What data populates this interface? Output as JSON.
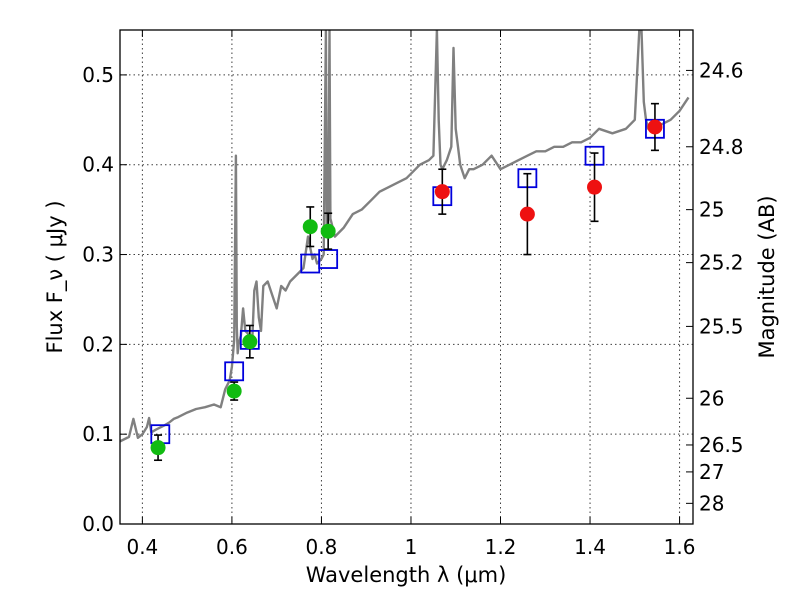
{
  "chart_data": {
    "type": "scatter",
    "xlabel": "Wavelength  λ (μm)",
    "ylabel": "Flux  F_ν  ( μJy )",
    "ylabel_right": "Magnitude (AB)",
    "xlim": [
      0.35,
      1.63
    ],
    "ylim": [
      0.0,
      0.55
    ],
    "x_ticks": [
      0.4,
      0.6,
      0.8,
      1.0,
      1.2,
      1.4,
      1.6
    ],
    "x_tick_labels": [
      "0.4",
      "0.6",
      "0.8",
      "1",
      "1.2",
      "1.4",
      "1.6"
    ],
    "y_ticks": [
      0.0,
      0.1,
      0.2,
      0.3,
      0.4,
      0.5
    ],
    "y_tick_labels": [
      "0.0",
      "0.1",
      "0.2",
      "0.3",
      "0.4",
      "0.5"
    ],
    "right_ticks": [
      {
        "mag": "24.6",
        "flux": 0.505
      },
      {
        "mag": "24.8",
        "flux": 0.42
      },
      {
        "mag": "25",
        "flux": 0.35
      },
      {
        "mag": "25.2",
        "flux": 0.291
      },
      {
        "mag": "25.5",
        "flux": 0.22
      },
      {
        "mag": "26",
        "flux": 0.14
      },
      {
        "mag": "26.5",
        "flux": 0.088
      },
      {
        "mag": "27",
        "flux": 0.058
      },
      {
        "mag": "28",
        "flux": 0.023
      }
    ],
    "grid": true,
    "colors": {
      "spectrum": "#808080",
      "model": "#0000dd",
      "green": "#11bb11",
      "red": "#ee1111",
      "errorbar": "#000000"
    },
    "series": [
      {
        "kind": "spectrum",
        "x": [
          0.35,
          0.37,
          0.38,
          0.39,
          0.4,
          0.41,
          0.415,
          0.42,
          0.43,
          0.45,
          0.46,
          0.47,
          0.48,
          0.5,
          0.52,
          0.54,
          0.56,
          0.575,
          0.585,
          0.595,
          0.6,
          0.605,
          0.607,
          0.609,
          0.611,
          0.613,
          0.615,
          0.62,
          0.625,
          0.63,
          0.64,
          0.645,
          0.65,
          0.655,
          0.66,
          0.665,
          0.67,
          0.68,
          0.69,
          0.7,
          0.71,
          0.72,
          0.73,
          0.74,
          0.75,
          0.76,
          0.77,
          0.78,
          0.785,
          0.79,
          0.8,
          0.805,
          0.81,
          0.812,
          0.815,
          0.818,
          0.82,
          0.83,
          0.85,
          0.87,
          0.89,
          0.91,
          0.93,
          0.95,
          0.97,
          0.99,
          1.0,
          1.02,
          1.04,
          1.05,
          1.058,
          1.062,
          1.066,
          1.07,
          1.08,
          1.09,
          1.095,
          1.1,
          1.105,
          1.11,
          1.12,
          1.13,
          1.14,
          1.16,
          1.18,
          1.2,
          1.22,
          1.24,
          1.26,
          1.28,
          1.3,
          1.32,
          1.34,
          1.36,
          1.38,
          1.4,
          1.42,
          1.45,
          1.48,
          1.5,
          1.51,
          1.515,
          1.52,
          1.525,
          1.53,
          1.54,
          1.56,
          1.58,
          1.6,
          1.62
        ],
        "y": [
          0.092,
          0.097,
          0.117,
          0.096,
          0.1,
          0.108,
          0.118,
          0.102,
          0.105,
          0.11,
          0.113,
          0.117,
          0.119,
          0.124,
          0.128,
          0.13,
          0.133,
          0.13,
          0.15,
          0.16,
          0.175,
          0.205,
          0.3,
          0.41,
          0.22,
          0.19,
          0.2,
          0.21,
          0.24,
          0.215,
          0.21,
          0.2,
          0.26,
          0.27,
          0.23,
          0.215,
          0.265,
          0.27,
          0.255,
          0.24,
          0.265,
          0.26,
          0.27,
          0.275,
          0.28,
          0.285,
          0.32,
          0.295,
          0.3,
          0.29,
          0.295,
          0.3,
          0.55,
          0.32,
          0.33,
          0.55,
          0.34,
          0.32,
          0.33,
          0.345,
          0.35,
          0.36,
          0.37,
          0.375,
          0.38,
          0.385,
          0.39,
          0.4,
          0.405,
          0.41,
          0.55,
          0.45,
          0.4,
          0.395,
          0.405,
          0.42,
          0.53,
          0.44,
          0.42,
          0.4,
          0.385,
          0.395,
          0.395,
          0.4,
          0.41,
          0.395,
          0.4,
          0.405,
          0.41,
          0.415,
          0.415,
          0.42,
          0.42,
          0.425,
          0.425,
          0.43,
          0.44,
          0.435,
          0.44,
          0.45,
          0.55,
          0.55,
          0.47,
          0.45,
          0.44,
          0.44,
          0.445,
          0.45,
          0.46,
          0.475
        ]
      },
      {
        "kind": "model-squares",
        "x": [
          0.44,
          0.605,
          0.64,
          0.775,
          0.815,
          1.07,
          1.26,
          1.41,
          1.545
        ],
        "y": [
          0.1,
          0.17,
          0.205,
          0.29,
          0.295,
          0.365,
          0.385,
          0.41,
          0.44
        ]
      },
      {
        "kind": "observed-green",
        "x": [
          0.435,
          0.605,
          0.64,
          0.775,
          0.815
        ],
        "y": [
          0.085,
          0.148,
          0.203,
          0.331,
          0.326
        ],
        "err": [
          0.014,
          0.01,
          0.018,
          0.022,
          0.02
        ]
      },
      {
        "kind": "observed-red",
        "x": [
          1.07,
          1.26,
          1.41,
          1.545
        ],
        "y": [
          0.37,
          0.345,
          0.375,
          0.442
        ],
        "err": [
          0.025,
          0.045,
          0.038,
          0.026
        ]
      }
    ]
  }
}
